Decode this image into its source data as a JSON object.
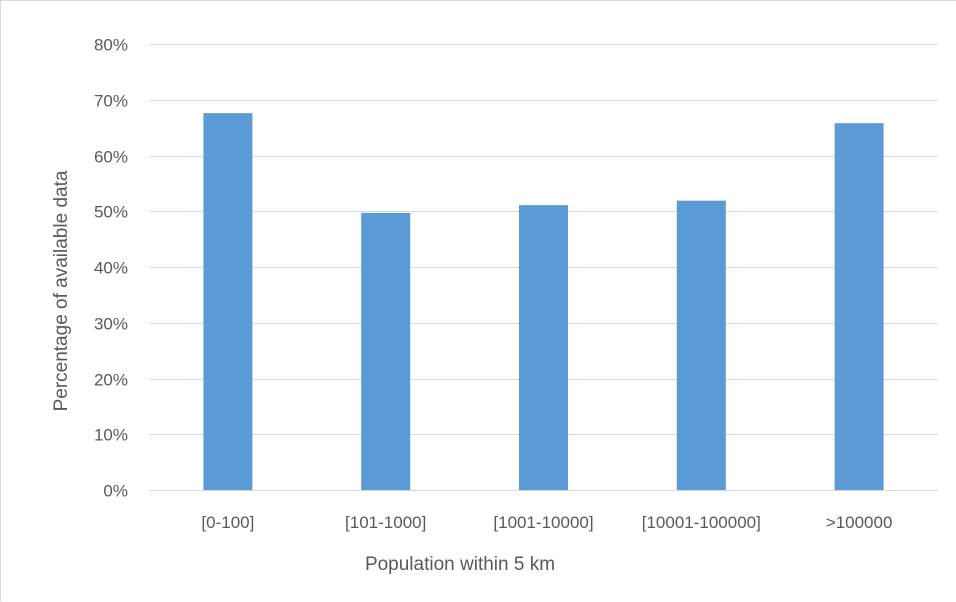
{
  "chart_data": {
    "type": "bar",
    "title": "",
    "xlabel": "Population within 5 km",
    "ylabel": "Percentage of available data",
    "categories": [
      "[0-100]",
      "[101-1000]",
      "[1001-10000]",
      "[10001-100000]",
      ">100000"
    ],
    "series": [
      {
        "values": [
          0.676,
          0.497,
          0.511,
          0.519,
          0.658
        ]
      }
    ],
    "ylim": [
      0,
      0.8
    ],
    "yticks": [
      0,
      0.1,
      0.2,
      0.3,
      0.4,
      0.5,
      0.6,
      0.7,
      0.8
    ],
    "ytick_labels": [
      "0%",
      "10%",
      "20%",
      "30%",
      "40%",
      "50%",
      "60%",
      "70%",
      "80%"
    ],
    "grid": true,
    "legend": "none",
    "bar_color": "#5b9bd5",
    "grid_color": "#d9d9d9",
    "text_color": "#595959"
  }
}
